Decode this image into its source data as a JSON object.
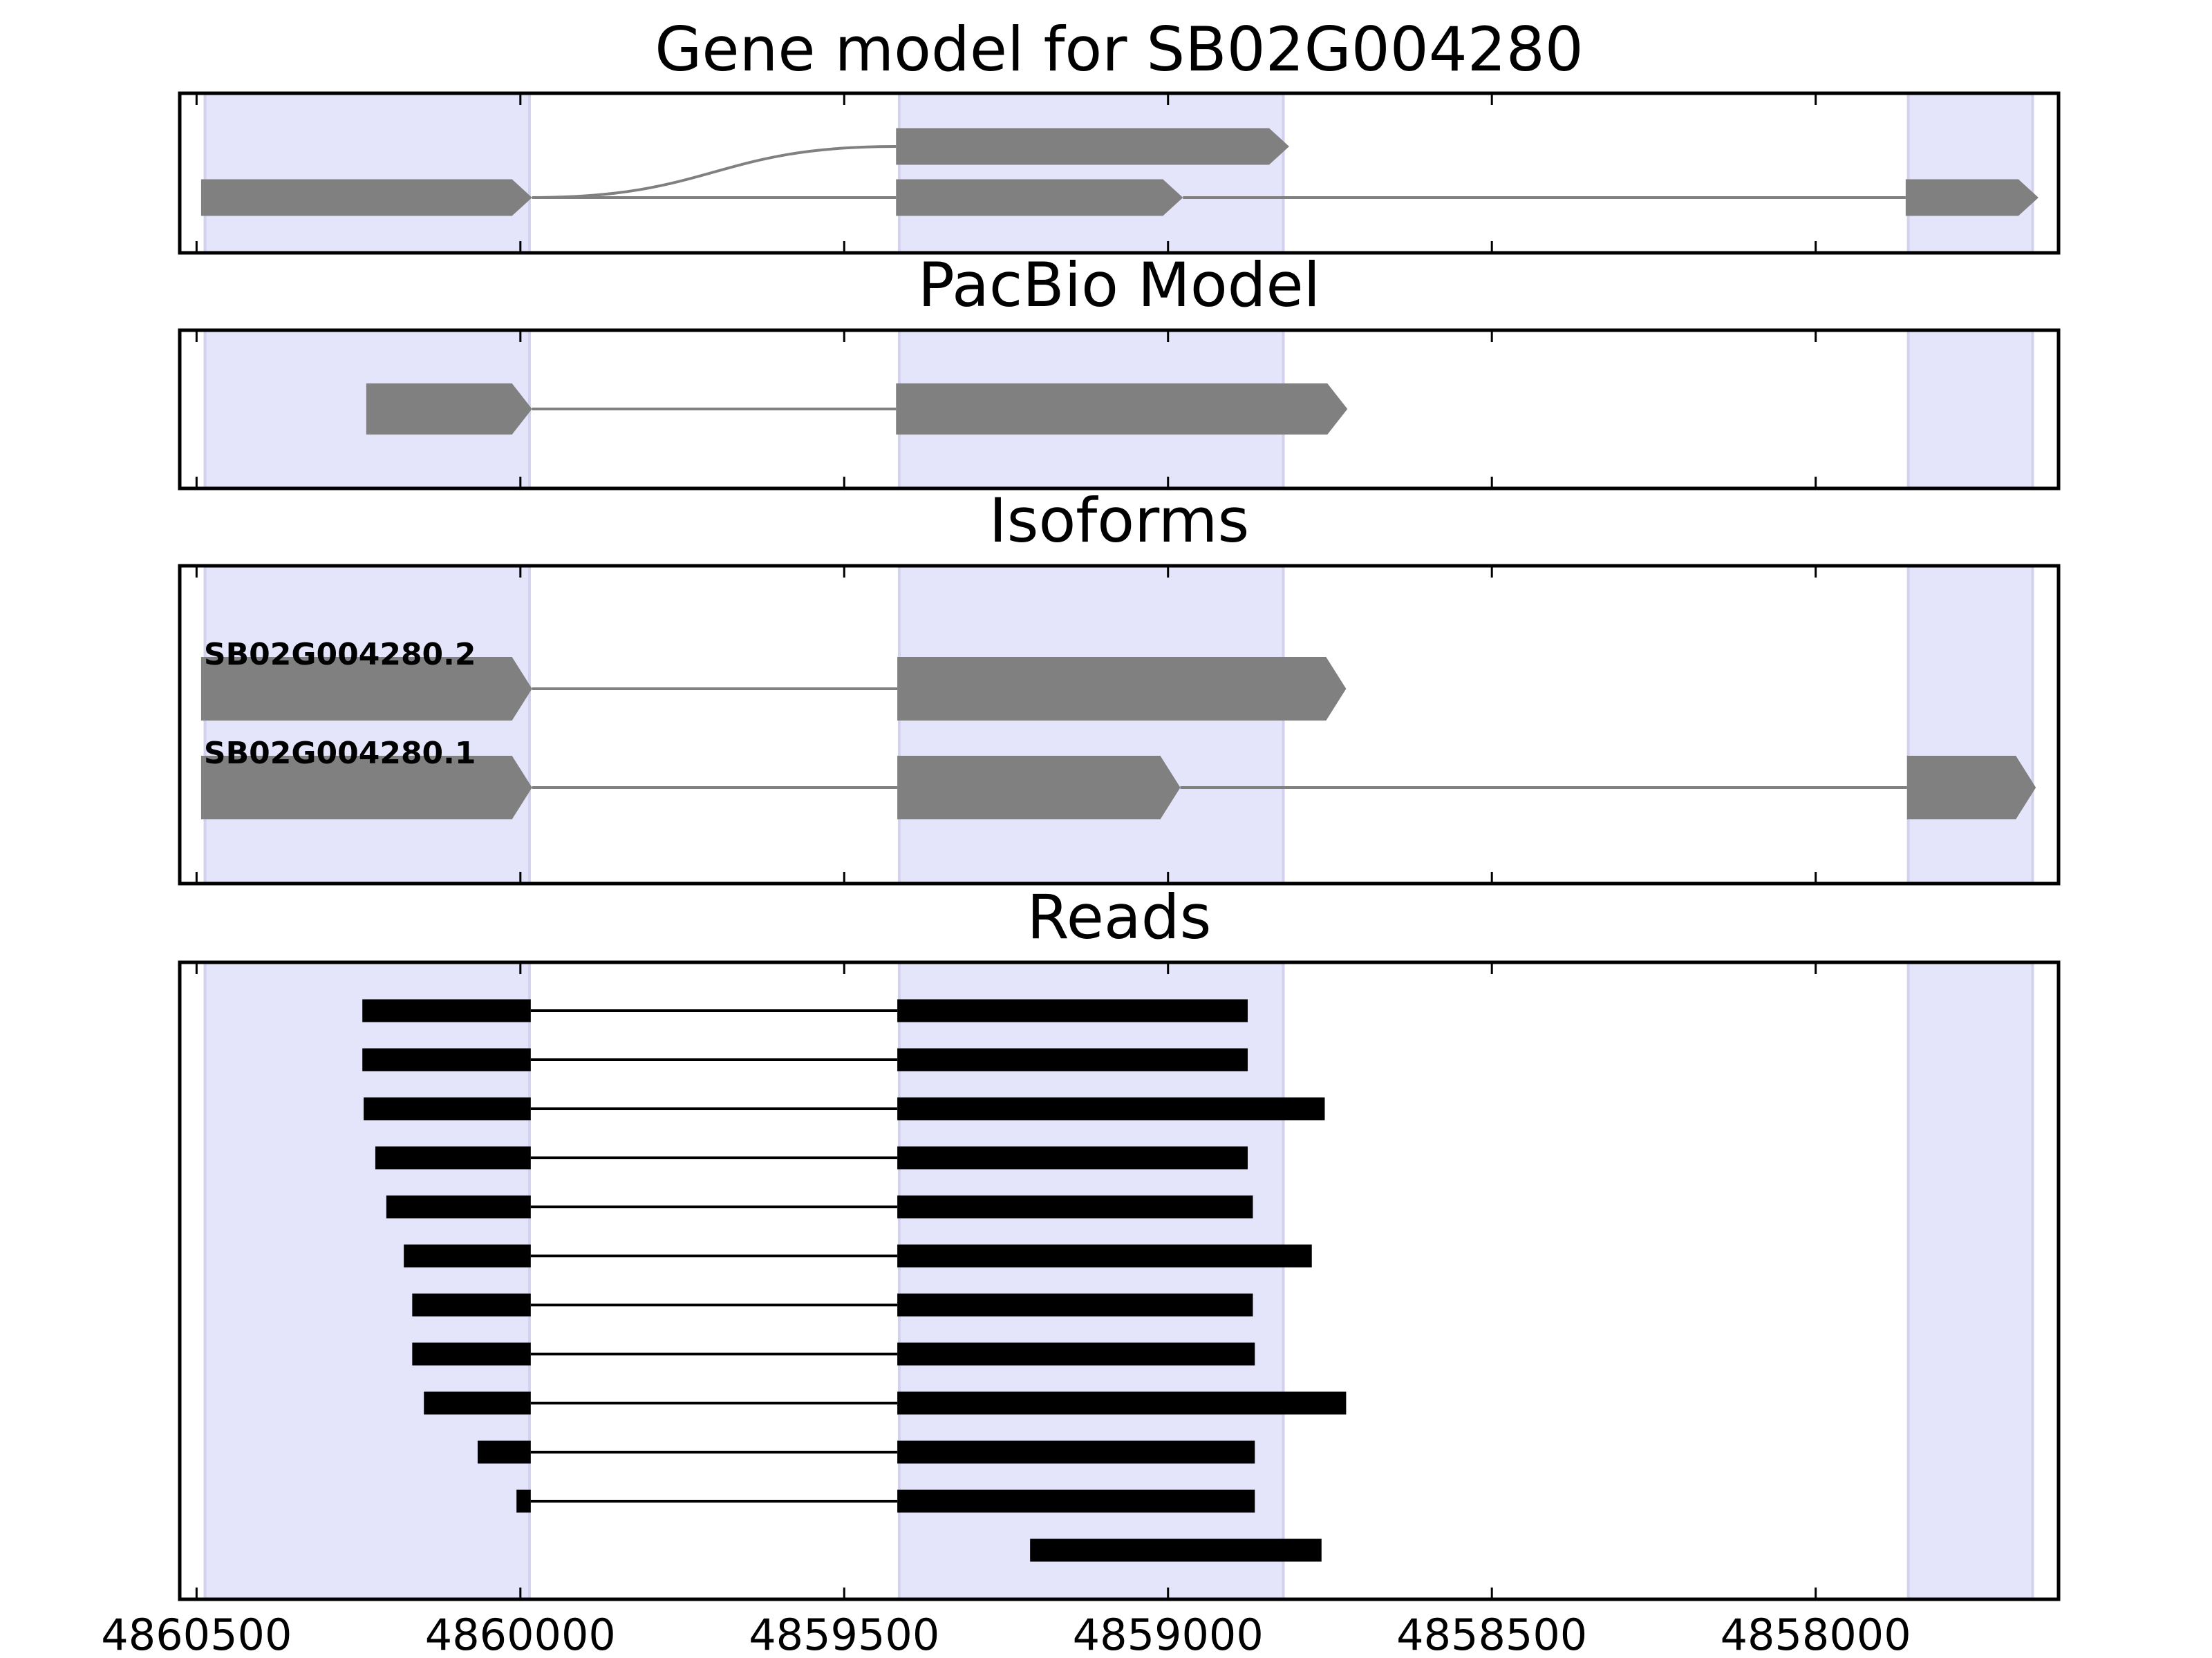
{
  "chart_data": {
    "type": "gene_tracks",
    "xlim": [
      4860526,
      4857625
    ],
    "xticks": [
      4860500,
      4860000,
      4859500,
      4859000,
      4858500,
      4858000
    ],
    "highlights": [
      [
        4860487,
        4859986
      ],
      [
        4859415,
        4858822
      ],
      [
        4857857,
        4857665
      ]
    ],
    "highlight_color": "#e4e4fb",
    "panels": [
      {
        "title": "Gene model for SB02G004280",
        "color": "#808080",
        "tracks": [
          {
            "exons": [
              [
                4859420,
                4858813
              ]
            ]
          },
          {
            "exons": [
              [
                4860493,
                4859982
              ],
              [
                4859420,
                4858977
              ],
              [
                4857861,
                4857656
              ]
            ]
          }
        ]
      },
      {
        "title": "PacBio Model",
        "color": "#808080",
        "tracks": [
          {
            "exons": [
              [
                4860238,
                4859982
              ],
              [
                4859420,
                4858723
              ]
            ]
          }
        ]
      },
      {
        "title": "Isoforms",
        "color": "#808080",
        "tracks": [
          {
            "name": "SB02G004280.2",
            "exons": [
              [
                4860493,
                4859982
              ],
              [
                4859418,
                4858725
              ]
            ]
          },
          {
            "name": "SB02G004280.1",
            "exons": [
              [
                4860493,
                4859982
              ],
              [
                4859418,
                4858981
              ],
              [
                4857859,
                4857660
              ]
            ]
          }
        ]
      },
      {
        "title": "Reads",
        "color": "#000000",
        "tracks": [
          {
            "exons": [
              [
                4860244,
                4859984
              ],
              [
                4859418,
                4858877
              ]
            ]
          },
          {
            "exons": [
              [
                4860244,
                4859984
              ],
              [
                4859418,
                4858877
              ]
            ]
          },
          {
            "exons": [
              [
                4860242,
                4859984
              ],
              [
                4859418,
                4858758
              ]
            ]
          },
          {
            "exons": [
              [
                4860224,
                4859984
              ],
              [
                4859418,
                4858877
              ]
            ]
          },
          {
            "exons": [
              [
                4860207,
                4859984
              ],
              [
                4859418,
                4858869
              ]
            ]
          },
          {
            "exons": [
              [
                4860180,
                4859984
              ],
              [
                4859418,
                4858778
              ]
            ]
          },
          {
            "exons": [
              [
                4860167,
                4859984
              ],
              [
                4859418,
                4858869
              ]
            ]
          },
          {
            "exons": [
              [
                4860167,
                4859984
              ],
              [
                4859418,
                4858866
              ]
            ]
          },
          {
            "exons": [
              [
                4860149,
                4859984
              ],
              [
                4859418,
                4858725
              ]
            ]
          },
          {
            "exons": [
              [
                4860066,
                4859984
              ],
              [
                4859418,
                4858866
              ]
            ]
          },
          {
            "exons": [
              [
                4860006,
                4859984
              ],
              [
                4859418,
                4858866
              ]
            ]
          },
          {
            "exons": [
              [
                4859213,
                4858763
              ]
            ]
          }
        ]
      }
    ]
  }
}
